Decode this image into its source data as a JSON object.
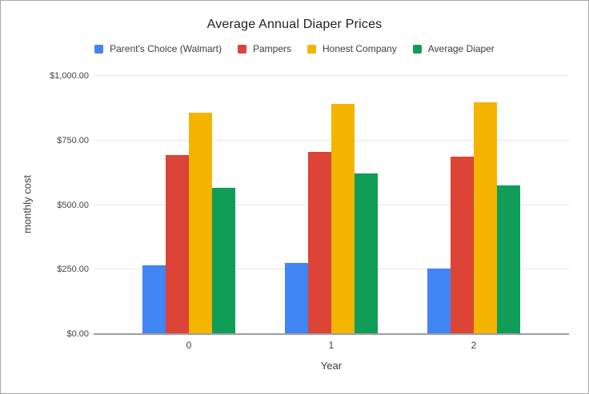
{
  "chart_data": {
    "type": "bar",
    "title": "Average Annual Diaper Prices",
    "xlabel": "Year",
    "ylabel": "monthly cost",
    "categories": [
      "0",
      "1",
      "2"
    ],
    "series": [
      {
        "name": "Parent's Choice (Walmart)",
        "slug": "parents-choice-walmart",
        "color": "#4285f4",
        "values": [
          262,
          273,
          251
        ]
      },
      {
        "name": "Pampers",
        "slug": "pampers",
        "color": "#db4437",
        "values": [
          690,
          704,
          683
        ]
      },
      {
        "name": "Honest Company",
        "slug": "honest-company",
        "color": "#f4b400",
        "values": [
          856,
          890,
          896
        ]
      },
      {
        "name": "Average Diaper",
        "slug": "average-diaper",
        "color": "#0f9d58",
        "values": [
          565,
          620,
          574
        ]
      }
    ],
    "ylim": [
      0,
      1000
    ],
    "yticks": [
      {
        "value": 0,
        "label": "$0.00"
      },
      {
        "value": 250,
        "label": "$250.00"
      },
      {
        "value": 500,
        "label": "$500.00"
      },
      {
        "value": 750,
        "label": "$750.00"
      },
      {
        "value": 1000,
        "label": "$1,000.00"
      }
    ],
    "grid": true,
    "legend_position": "top"
  }
}
